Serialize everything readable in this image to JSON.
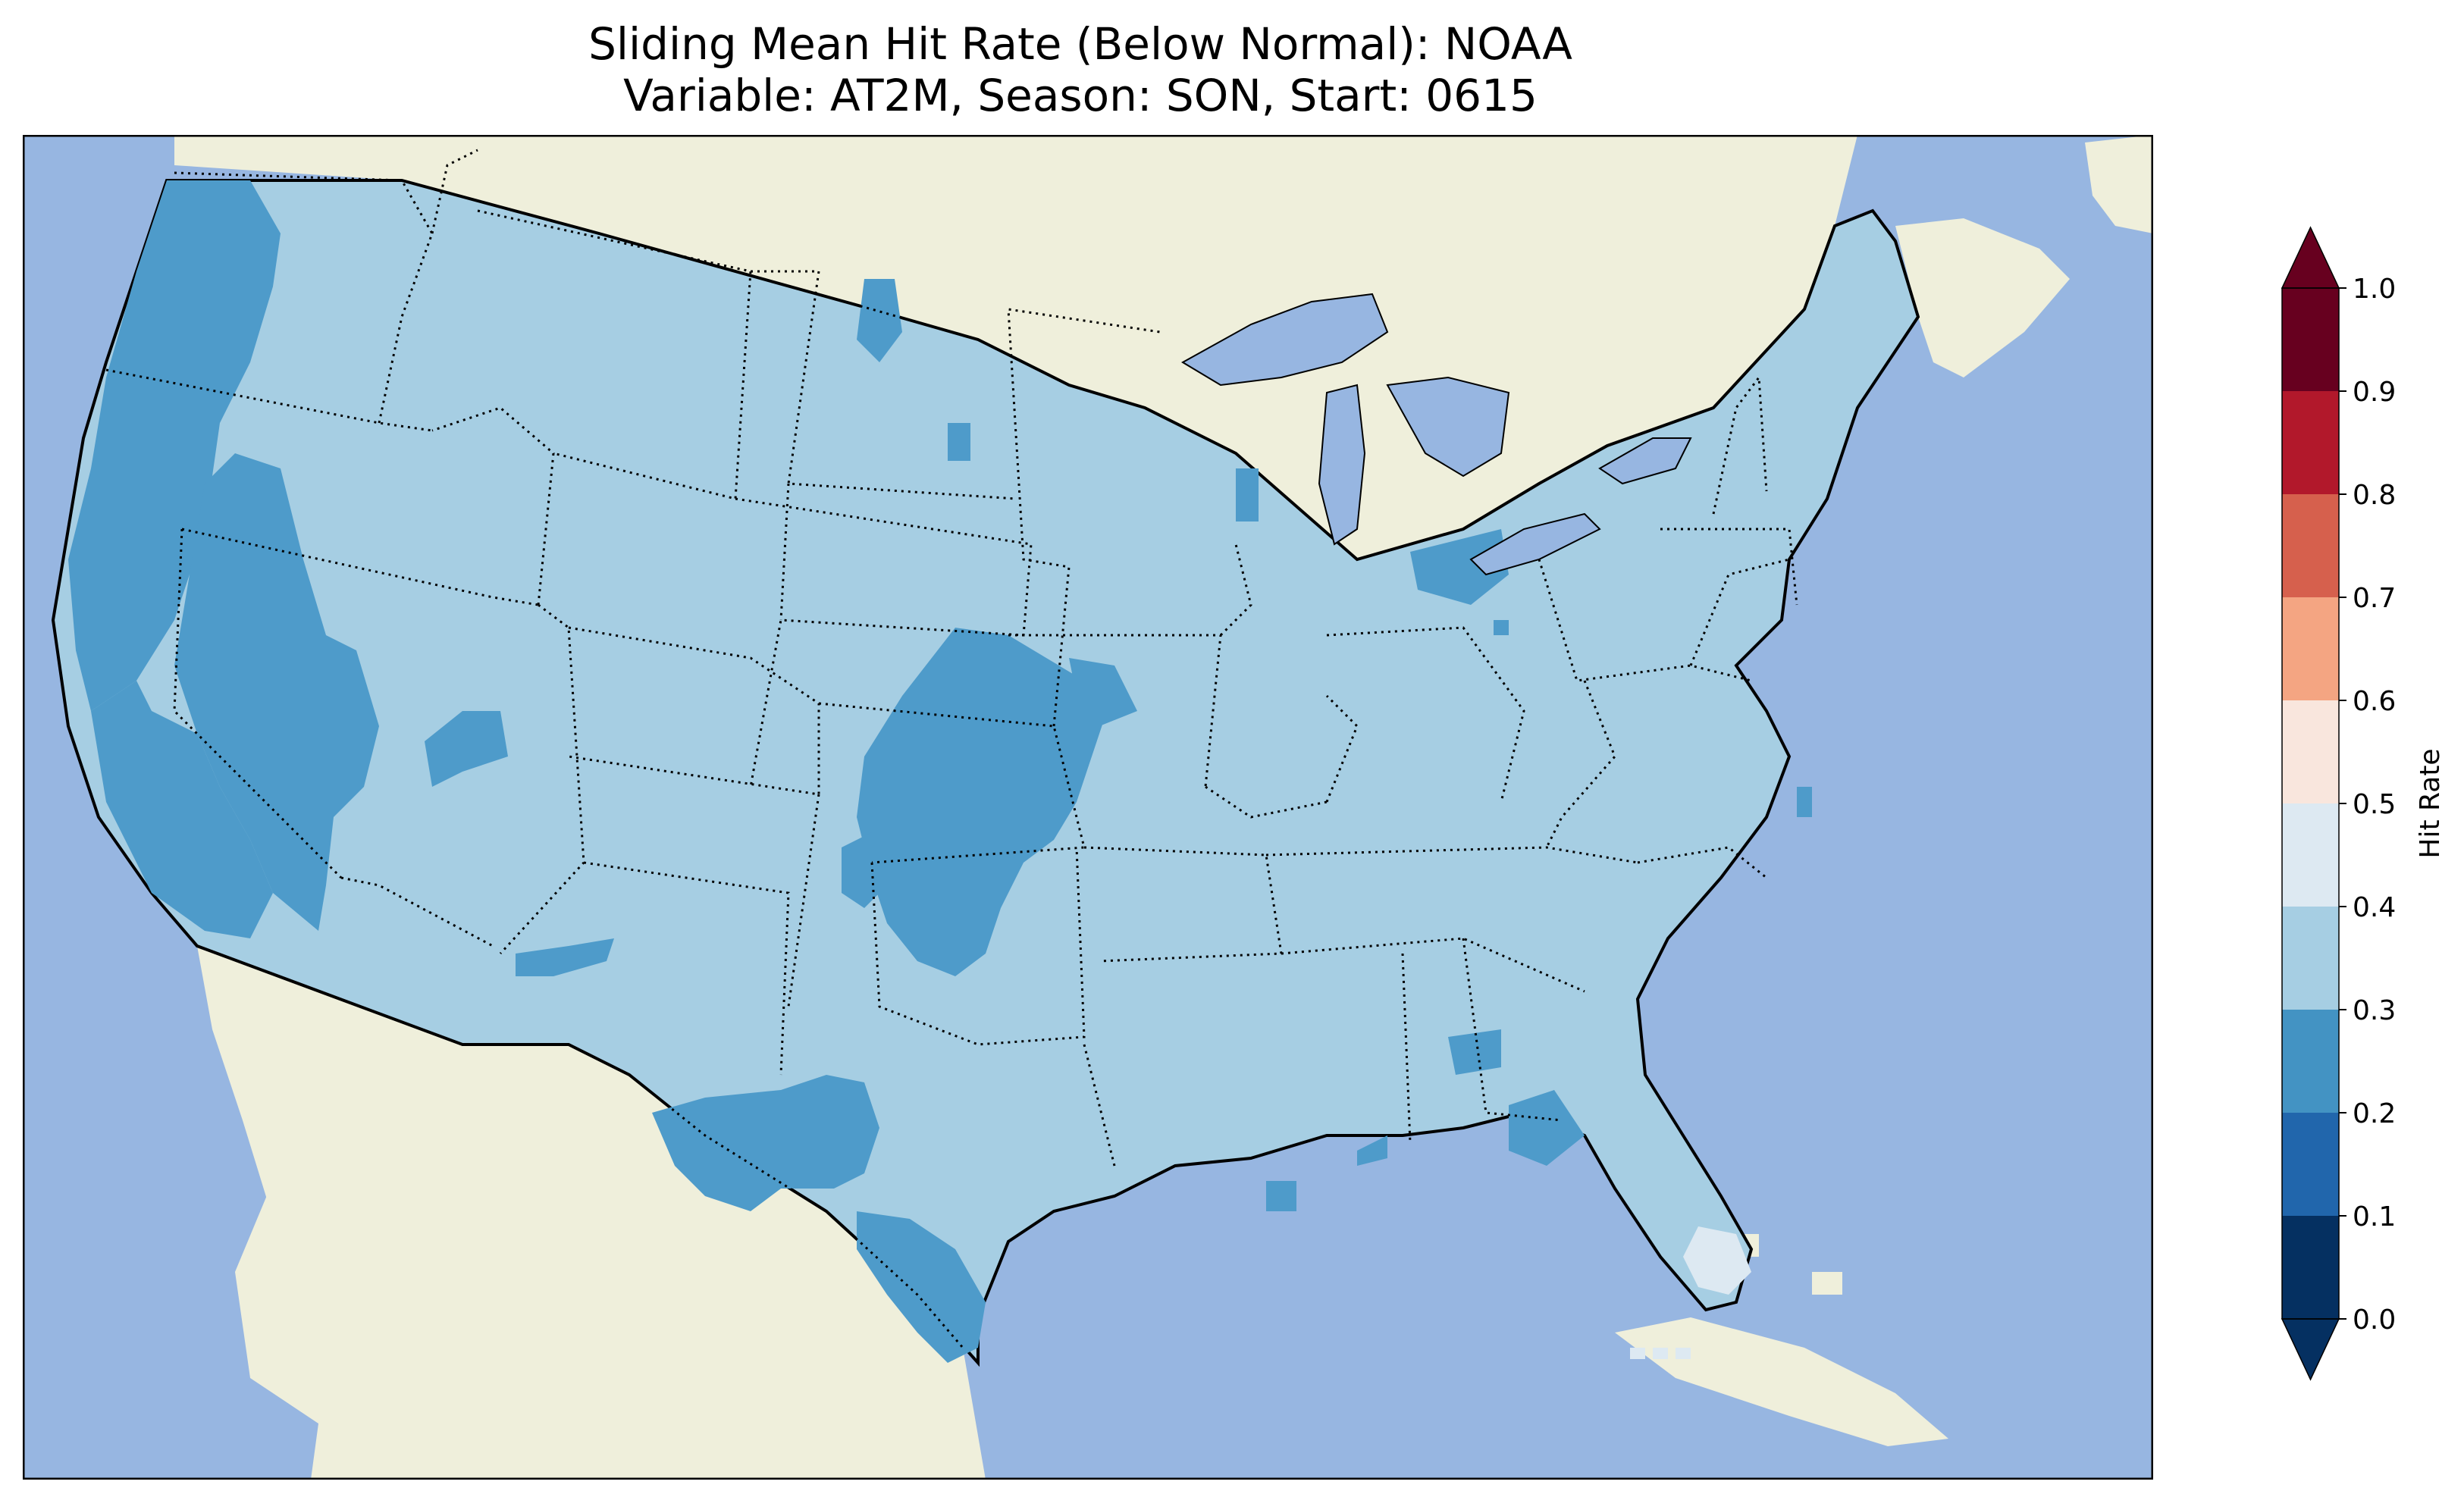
{
  "title": {
    "line1": "Sliding Mean Hit Rate (Below Normal): NOAA",
    "line2": "Variable: AT2M, Season: SON, Start: 0615"
  },
  "colors": {
    "ocean": "#97b6e1",
    "foreign_land": "#efefdb",
    "hit_0.2_0.3": "#4e9bca",
    "hit_0.3_0.4": "#a6cee3",
    "hit_0.4_0.5": "#dde9f2"
  },
  "map": {
    "region": "Contiguous United States",
    "field": "hit rate",
    "dominant_range": "0.3-0.4",
    "lower_range_areas": "0.2-0.3",
    "higher_range_areas": "0.4-0.5"
  },
  "colorbar": {
    "label": "Hit Rate",
    "ticks": [
      "0.0",
      "0.1",
      "0.2",
      "0.3",
      "0.4",
      "0.5",
      "0.6",
      "0.7",
      "0.8",
      "0.9",
      "1.0"
    ],
    "bins": [
      {
        "range": [
          0.0,
          0.1
        ],
        "color": "#053061"
      },
      {
        "range": [
          0.1,
          0.2
        ],
        "color": "#2166ac"
      },
      {
        "range": [
          0.2,
          0.3
        ],
        "color": "#4393c3"
      },
      {
        "range": [
          0.3,
          0.4
        ],
        "color": "#a6cee3"
      },
      {
        "range": [
          0.4,
          0.5
        ],
        "color": "#dde9f2"
      },
      {
        "range": [
          0.5,
          0.6
        ],
        "color": "#f9e6dd"
      },
      {
        "range": [
          0.6,
          0.7
        ],
        "color": "#f4a582"
      },
      {
        "range": [
          0.7,
          0.8
        ],
        "color": "#d6604d"
      },
      {
        "range": [
          0.8,
          0.9
        ],
        "color": "#b2182b"
      },
      {
        "range": [
          0.9,
          1.0
        ],
        "color": "#67001f"
      }
    ],
    "extend": "both"
  }
}
